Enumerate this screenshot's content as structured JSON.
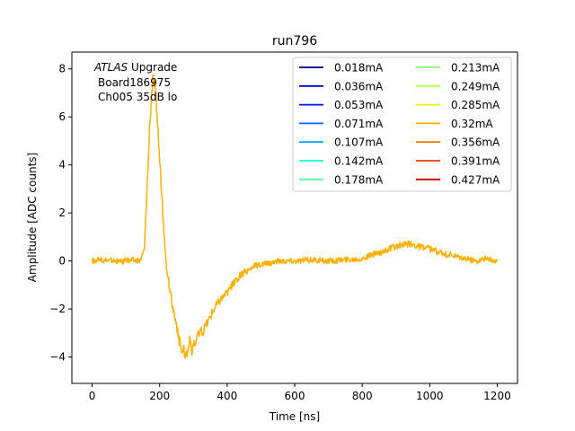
{
  "chart_data": {
    "type": "line",
    "title": "run796",
    "xlabel": "Time [ns]",
    "ylabel": "Amplitude [ADC counts]",
    "xlim": [
      -60,
      1260
    ],
    "ylim": [
      -5.1,
      8.7
    ],
    "xticks": [
      0,
      200,
      400,
      600,
      800,
      1000,
      1200
    ],
    "yticks": [
      -4,
      -2,
      0,
      2,
      4,
      6,
      8
    ],
    "xtick_labels": [
      "0",
      "200",
      "400",
      "600",
      "800",
      "1000",
      "1200"
    ],
    "ytick_labels": [
      "−4",
      "−2",
      "0",
      "2",
      "4",
      "6",
      "8"
    ],
    "annotation": {
      "line1_italic": "ATLAS",
      "line1_rest": " Upgrade",
      "line2": "Board186975",
      "line3": "Ch005 35dB lo"
    },
    "legend_location": "upper-right",
    "series": [
      {
        "name": "0.018mA",
        "color": "#00007f"
      },
      {
        "name": "0.036mA",
        "color": "#0000c8"
      },
      {
        "name": "0.053mA",
        "color": "#0014ff"
      },
      {
        "name": "0.071mA",
        "color": "#0064ff"
      },
      {
        "name": "0.107mA",
        "color": "#00a4ff"
      },
      {
        "name": "0.142mA",
        "color": "#19ffdd"
      },
      {
        "name": "0.178mA",
        "color": "#52ffa4"
      },
      {
        "name": "0.213mA",
        "color": "#84ff73"
      },
      {
        "name": "0.249mA",
        "color": "#b6ff41"
      },
      {
        "name": "0.285mA",
        "color": "#f0f10e"
      },
      {
        "name": "0.32mA",
        "color": "#ffb000"
      },
      {
        "name": "0.356mA",
        "color": "#ff7300"
      },
      {
        "name": "0.391mA",
        "color": "#ff3500"
      },
      {
        "name": "0.427mA",
        "color": "#c80000"
      }
    ],
    "visible_trace": {
      "series": "0.32mA",
      "x": [
        0,
        20,
        40,
        60,
        80,
        100,
        120,
        140,
        145,
        155,
        160,
        165,
        170,
        175,
        180,
        185,
        190,
        195,
        200,
        205,
        210,
        215,
        220,
        230,
        240,
        250,
        260,
        270,
        280,
        290,
        295,
        300,
        305,
        310,
        320,
        330,
        340,
        350,
        360,
        380,
        400,
        420,
        440,
        460,
        480,
        500,
        520,
        550,
        600,
        650,
        700,
        750,
        800,
        820,
        840,
        860,
        880,
        900,
        920,
        940,
        960,
        980,
        1000,
        1020,
        1040,
        1060,
        1080,
        1100,
        1120,
        1140,
        1160,
        1180,
        1200
      ],
      "y": [
        0.0,
        0.05,
        0.0,
        0.05,
        -0.05,
        0.0,
        0.05,
        0.0,
        0.1,
        0.5,
        2.2,
        3.8,
        5.3,
        6.8,
        7.6,
        7.3,
        6.7,
        5.5,
        4.2,
        3.0,
        1.8,
        0.7,
        -0.2,
        -1.2,
        -2.0,
        -2.8,
        -3.4,
        -3.7,
        -3.9,
        -3.3,
        -4.0,
        -3.3,
        -3.5,
        -3.2,
        -3.0,
        -2.9,
        -2.6,
        -2.3,
        -2.0,
        -1.6,
        -1.3,
        -0.9,
        -0.6,
        -0.4,
        -0.2,
        -0.15,
        -0.1,
        0.0,
        0.0,
        0.05,
        0.0,
        0.05,
        0.1,
        0.2,
        0.3,
        0.4,
        0.5,
        0.6,
        0.65,
        0.7,
        0.65,
        0.55,
        0.5,
        0.4,
        0.3,
        0.25,
        0.15,
        0.1,
        0.05,
        0.0,
        0.1,
        0.05,
        0.0
      ]
    }
  }
}
